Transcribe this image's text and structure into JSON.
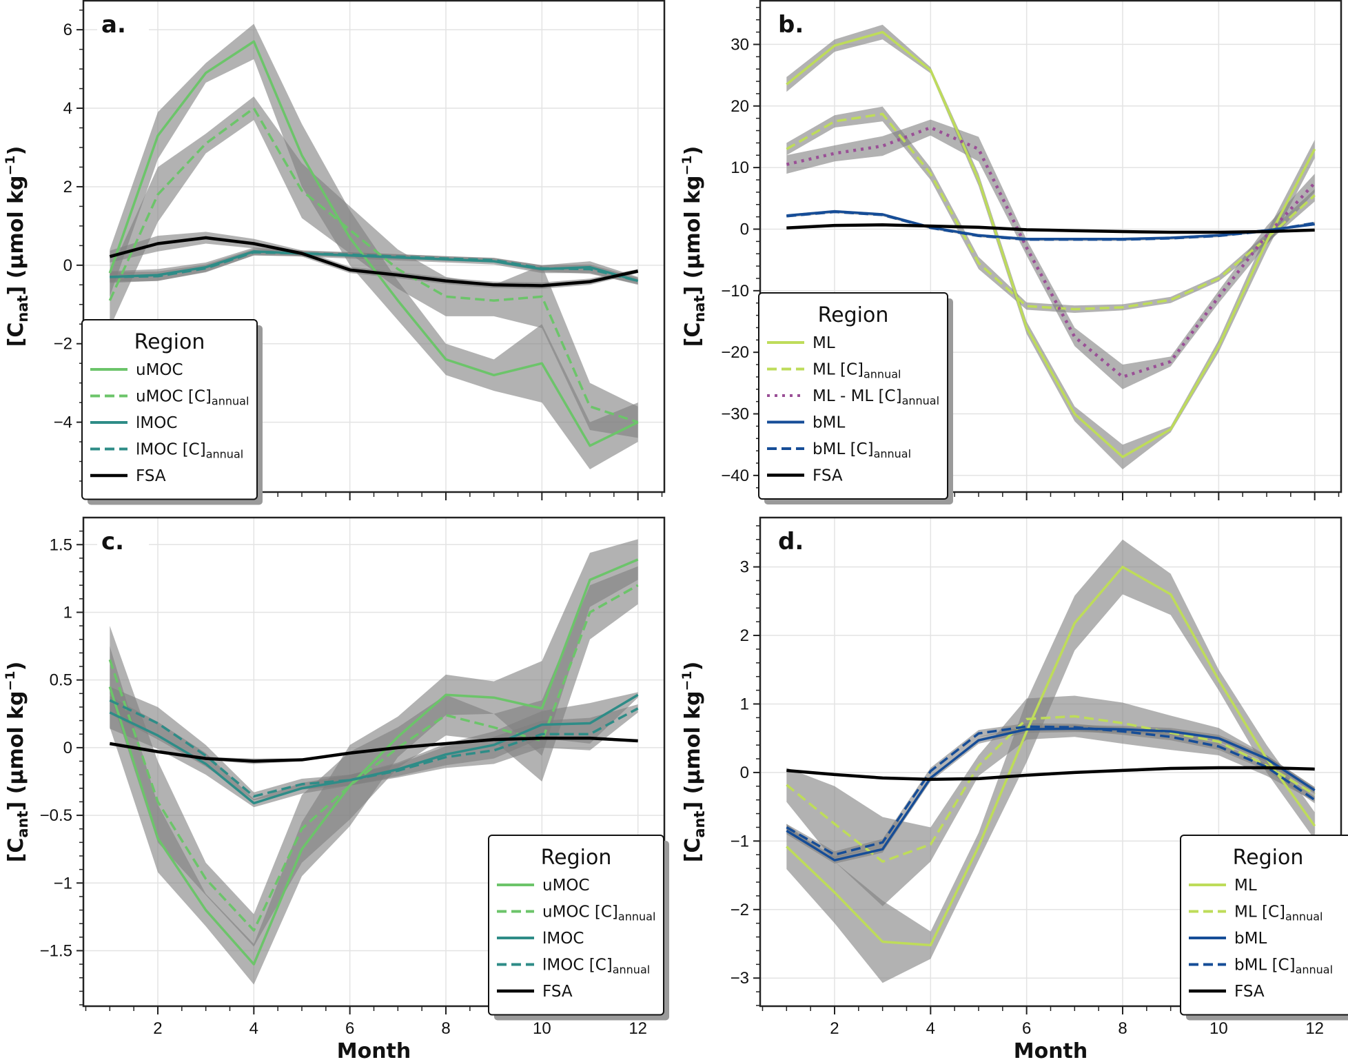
{
  "figure": {
    "xlabel": "Month",
    "legend_title": "Region"
  },
  "chart_data": [
    {
      "panel": "a.",
      "type": "line",
      "ylabel_main": "[C",
      "ylabel_sub": "nat",
      "ylabel_rest": "] (µmol kg",
      "ylabel_sup": "−1",
      "ylabel_end": ")",
      "xlim": [
        0.45,
        12.55
      ],
      "ylim": [
        -5.78,
        6.74
      ],
      "xticks": [
        2,
        4,
        6,
        8,
        10,
        12
      ],
      "show_xtick_labels": false,
      "yticks": [
        -4,
        -2,
        0,
        2,
        4,
        6
      ],
      "ytick_labels": [
        "−4",
        "−2",
        "0",
        "2",
        "4",
        "6"
      ],
      "yminor_step": 0.5,
      "grid": true,
      "legend_position": "lower-left",
      "x": [
        1,
        2,
        3,
        4,
        5,
        6,
        7,
        8,
        9,
        10,
        11,
        12
      ],
      "series": [
        {
          "name": "uMOC",
          "sub": "",
          "color": "#6cc46a",
          "dash": "solid",
          "values": [
            -0.2,
            3.3,
            4.9,
            5.7,
            2.8,
            0.7,
            -0.9,
            -2.4,
            -2.8,
            -2.5,
            -4.6,
            -4.0
          ],
          "band": [
            0.6,
            0.6,
            0.25,
            0.45,
            0.8,
            0.7,
            0.5,
            0.4,
            0.4,
            1.0,
            0.6,
            0.5
          ]
        },
        {
          "name": "uMOC [C]",
          "sub": "annual",
          "color": "#6cc46a",
          "dash": "dashed",
          "values": [
            -0.9,
            1.8,
            3.1,
            4.0,
            1.9,
            0.9,
            -0.1,
            -0.8,
            -0.9,
            -0.8,
            -3.6,
            -4.0
          ],
          "band": [
            0.7,
            0.7,
            0.25,
            0.3,
            0.7,
            0.6,
            0.5,
            0.5,
            0.4,
            0.8,
            0.6,
            0.4
          ]
        },
        {
          "name": "lMOC",
          "sub": "",
          "color": "#2e8c87",
          "dash": "solid",
          "values": [
            -0.3,
            -0.25,
            -0.05,
            0.35,
            0.3,
            0.25,
            0.2,
            0.15,
            0.1,
            -0.1,
            -0.05,
            -0.4
          ],
          "band": [
            0.15,
            0.15,
            0.12,
            0.1,
            0.08,
            0.08,
            0.08,
            0.08,
            0.08,
            0.1,
            0.15,
            0.1
          ]
        },
        {
          "name": "lMOC [C]",
          "sub": "annual",
          "color": "#2e8c87",
          "dash": "dashed",
          "values": [
            -0.3,
            -0.28,
            -0.08,
            0.33,
            0.3,
            0.27,
            0.22,
            0.17,
            0.13,
            -0.08,
            -0.1,
            -0.4
          ],
          "band": [
            0.12,
            0.12,
            0.1,
            0.08,
            0.06,
            0.06,
            0.06,
            0.06,
            0.06,
            0.08,
            0.12,
            0.08
          ]
        },
        {
          "name": "FSA",
          "sub": "",
          "color": "#000000",
          "dash": "solid",
          "values": [
            0.22,
            0.55,
            0.7,
            0.55,
            0.3,
            -0.12,
            -0.25,
            -0.4,
            -0.5,
            -0.52,
            -0.42,
            -0.15
          ],
          "band": [
            0.15,
            0.2,
            0.15,
            0.12,
            0.08,
            0.08,
            0.08,
            0.08,
            0.08,
            0.08,
            0.08,
            0.05
          ]
        }
      ]
    },
    {
      "panel": "b.",
      "type": "line",
      "ylabel_main": "[C",
      "ylabel_sub": "nat",
      "ylabel_rest": "] (µmol kg",
      "ylabel_sup": "−1",
      "ylabel_end": ")",
      "xlim": [
        0.45,
        12.55
      ],
      "ylim": [
        -42.7,
        37.1
      ],
      "xticks": [
        2,
        4,
        6,
        8,
        10,
        12
      ],
      "show_xtick_labels": false,
      "yticks": [
        -40,
        -30,
        -20,
        -10,
        0,
        10,
        20,
        30
      ],
      "ytick_labels": [
        "−40",
        "−30",
        "−20",
        "−10",
        "0",
        "10",
        "20",
        "30"
      ],
      "yminor_step": 2,
      "grid": true,
      "legend_position": "lower-left",
      "x": [
        1,
        2,
        3,
        4,
        5,
        6,
        7,
        8,
        9,
        10,
        11,
        12
      ],
      "series": [
        {
          "name": "ML",
          "sub": "",
          "color": "#bedc5a",
          "dash": "solid",
          "values": [
            23.5,
            29.8,
            32.0,
            25.8,
            8.0,
            -16.0,
            -30.0,
            -37.0,
            -32.5,
            -19.0,
            -2.0,
            13.0
          ],
          "band": [
            1.2,
            1.0,
            1.2,
            0.5,
            1.0,
            1.0,
            1.2,
            2.0,
            0.5,
            1.0,
            1.5,
            1.5
          ]
        },
        {
          "name": "ML [C]",
          "sub": "annual",
          "color": "#bedc5a",
          "dash": "dashed",
          "values": [
            13.0,
            17.5,
            18.7,
            9.0,
            -5.5,
            -12.5,
            -13.0,
            -12.7,
            -11.5,
            -8.0,
            -1.5,
            5.5
          ],
          "band": [
            1.0,
            1.0,
            1.2,
            1.0,
            1.0,
            0.6,
            0.6,
            0.5,
            0.5,
            0.5,
            0.8,
            1.0
          ]
        },
        {
          "name": "ML - ML [C]",
          "sub": "annual",
          "color": "#9a4f96",
          "dash": "dotted",
          "values": [
            10.5,
            12.3,
            13.5,
            16.5,
            13.0,
            -3.0,
            -17.5,
            -24.0,
            -21.5,
            -11.0,
            -1.0,
            7.5
          ],
          "band": [
            1.5,
            1.3,
            1.6,
            1.3,
            2.0,
            1.3,
            1.5,
            2.0,
            0.8,
            1.0,
            1.5,
            1.5
          ]
        },
        {
          "name": "bML",
          "sub": "",
          "color": "#164d97",
          "dash": "solid",
          "values": [
            2.2,
            2.9,
            2.4,
            0.3,
            -1.0,
            -1.6,
            -1.6,
            -1.6,
            -1.4,
            -1.0,
            -0.2,
            0.8
          ],
          "band": [
            0.2,
            0.2,
            0.2,
            0.2,
            0.2,
            0.2,
            0.2,
            0.2,
            0.2,
            0.2,
            0.2,
            0.2
          ]
        },
        {
          "name": "bML [C]",
          "sub": "annual",
          "color": "#164d97",
          "dash": "dashed",
          "values": [
            2.1,
            2.8,
            2.3,
            0.2,
            -1.1,
            -1.7,
            -1.7,
            -1.7,
            -1.5,
            -1.1,
            -0.3,
            1.0
          ],
          "band": [
            0.2,
            0.2,
            0.2,
            0.2,
            0.2,
            0.2,
            0.2,
            0.2,
            0.2,
            0.2,
            0.2,
            0.2
          ]
        },
        {
          "name": "FSA",
          "sub": "",
          "color": "#000000",
          "dash": "solid",
          "values": [
            0.2,
            0.6,
            0.7,
            0.5,
            0.3,
            -0.1,
            -0.25,
            -0.4,
            -0.5,
            -0.5,
            -0.4,
            -0.15
          ],
          "band": [
            0.1,
            0.1,
            0.1,
            0.1,
            0.1,
            0.1,
            0.1,
            0.1,
            0.1,
            0.1,
            0.1,
            0.1
          ]
        }
      ]
    },
    {
      "panel": "c.",
      "type": "line",
      "ylabel_main": "[C",
      "ylabel_sub": "ant",
      "ylabel_rest": "] (µmol kg",
      "ylabel_sup": "−1",
      "ylabel_end": ")",
      "xlim": [
        0.45,
        12.55
      ],
      "ylim": [
        -1.91,
        1.7
      ],
      "xticks": [
        2,
        4,
        6,
        8,
        10,
        12
      ],
      "xtick_labels": [
        "2",
        "4",
        "6",
        "8",
        "10",
        "12"
      ],
      "show_xtick_labels": true,
      "yticks": [
        -1.5,
        -1,
        -0.5,
        0,
        0.5,
        1,
        1.5
      ],
      "ytick_labels": [
        "−1.5",
        "−1",
        "−0.5",
        "0",
        "0.5",
        "1",
        "1.5"
      ],
      "yminor_step": 0.1,
      "grid": true,
      "legend_position": "lower-right",
      "x": [
        1,
        2,
        3,
        4,
        5,
        6,
        7,
        8,
        9,
        10,
        11,
        12
      ],
      "series": [
        {
          "name": "uMOC",
          "sub": "",
          "color": "#6cc46a",
          "dash": "solid",
          "values": [
            0.45,
            -0.67,
            -1.2,
            -1.6,
            -0.75,
            -0.28,
            0.08,
            0.39,
            0.37,
            0.29,
            1.24,
            1.39
          ],
          "band": [
            0.3,
            0.25,
            0.12,
            0.15,
            0.2,
            0.3,
            0.15,
            0.15,
            0.12,
            0.35,
            0.2,
            0.15
          ]
        },
        {
          "name": "uMOC [C]",
          "sub": "annual",
          "color": "#6cc46a",
          "dash": "dashed",
          "values": [
            0.65,
            -0.4,
            -0.97,
            -1.35,
            -0.6,
            -0.28,
            0.0,
            0.24,
            0.15,
            0.05,
            1.0,
            1.2
          ],
          "band": [
            0.25,
            0.3,
            0.12,
            0.12,
            0.25,
            0.25,
            0.15,
            0.15,
            0.1,
            0.3,
            0.2,
            0.14
          ]
        },
        {
          "name": "lMOC",
          "sub": "",
          "color": "#2e8c87",
          "dash": "solid",
          "values": [
            0.26,
            0.09,
            -0.12,
            -0.41,
            -0.3,
            -0.24,
            -0.16,
            -0.05,
            0.02,
            0.17,
            0.18,
            0.39
          ],
          "band": [
            0.12,
            0.1,
            0.08,
            0.03,
            0.04,
            0.04,
            0.05,
            0.08,
            0.1,
            0.1,
            0.15,
            0.02
          ]
        },
        {
          "name": "lMOC [C]",
          "sub": "annual",
          "color": "#2e8c87",
          "dash": "dashed",
          "values": [
            0.35,
            0.18,
            -0.06,
            -0.36,
            -0.27,
            -0.24,
            -0.17,
            -0.07,
            -0.02,
            0.1,
            0.1,
            0.29
          ],
          "band": [
            0.1,
            0.12,
            0.08,
            0.03,
            0.04,
            0.04,
            0.05,
            0.08,
            0.1,
            0.1,
            0.12,
            0.03
          ]
        },
        {
          "name": "FSA",
          "sub": "",
          "color": "#000000",
          "dash": "solid",
          "values": [
            0.03,
            -0.03,
            -0.08,
            -0.1,
            -0.09,
            -0.04,
            0.0,
            0.03,
            0.06,
            0.07,
            0.07,
            0.05
          ],
          "band": [
            0.01,
            0.01,
            0.01,
            0.02,
            0.01,
            0.01,
            0.01,
            0.01,
            0.01,
            0.01,
            0.01,
            0.01
          ]
        }
      ]
    },
    {
      "panel": "d.",
      "type": "line",
      "ylabel_main": "[C",
      "ylabel_sub": "ant",
      "ylabel_rest": "] (µmol kg",
      "ylabel_sup": "−1",
      "ylabel_end": ")",
      "xlim": [
        0.45,
        12.55
      ],
      "ylim": [
        -3.41,
        3.72
      ],
      "xticks": [
        2,
        4,
        6,
        8,
        10,
        12
      ],
      "xtick_labels": [
        "2",
        "4",
        "6",
        "8",
        "10",
        "12"
      ],
      "show_xtick_labels": true,
      "yticks": [
        -3,
        -2,
        -1,
        0,
        1,
        2,
        3
      ],
      "ytick_labels": [
        "−3",
        "−2",
        "−1",
        "0",
        "1",
        "2",
        "3"
      ],
      "yminor_step": 0.2,
      "grid": true,
      "legend_position": "lower-right",
      "x": [
        1,
        2,
        3,
        4,
        5,
        6,
        7,
        8,
        9,
        10,
        11,
        12
      ],
      "series": [
        {
          "name": "ML",
          "sub": "",
          "color": "#bedc5a",
          "dash": "solid",
          "values": [
            -1.08,
            -1.75,
            -2.47,
            -2.52,
            -1.08,
            0.6,
            2.18,
            3.0,
            2.6,
            1.35,
            0.2,
            -0.78
          ],
          "band": [
            0.33,
            0.45,
            0.6,
            0.2,
            0.2,
            0.45,
            0.4,
            0.4,
            0.3,
            0.15,
            0.2,
            0.2
          ]
        },
        {
          "name": "ML [C]",
          "sub": "annual",
          "color": "#bedc5a",
          "dash": "dashed",
          "values": [
            -0.18,
            -0.75,
            -1.3,
            -1.05,
            0.1,
            0.78,
            0.82,
            0.72,
            0.58,
            0.45,
            0.1,
            -0.32
          ],
          "band": [
            0.25,
            0.55,
            0.65,
            0.25,
            0.15,
            0.3,
            0.3,
            0.3,
            0.25,
            0.2,
            0.15,
            0.1
          ]
        },
        {
          "name": "bML",
          "sub": "",
          "color": "#164d97",
          "dash": "solid",
          "values": [
            -0.85,
            -1.28,
            -1.12,
            -0.08,
            0.47,
            0.63,
            0.64,
            0.63,
            0.6,
            0.5,
            0.2,
            -0.26
          ],
          "band": [
            0.05,
            0.05,
            0.05,
            0.05,
            0.05,
            0.05,
            0.05,
            0.05,
            0.05,
            0.05,
            0.05,
            0.05
          ]
        },
        {
          "name": "bML [C]",
          "sub": "annual",
          "color": "#164d97",
          "dash": "dashed",
          "values": [
            -0.8,
            -1.2,
            -1.02,
            0.02,
            0.57,
            0.67,
            0.66,
            0.6,
            0.52,
            0.38,
            0.08,
            -0.4
          ],
          "band": [
            0.05,
            0.05,
            0.05,
            0.05,
            0.05,
            0.05,
            0.05,
            0.05,
            0.05,
            0.05,
            0.05,
            0.05
          ]
        },
        {
          "name": "FSA",
          "sub": "",
          "color": "#000000",
          "dash": "solid",
          "values": [
            0.03,
            -0.03,
            -0.08,
            -0.1,
            -0.09,
            -0.04,
            0.0,
            0.03,
            0.06,
            0.07,
            0.07,
            0.05
          ],
          "band": [
            0.01,
            0.01,
            0.01,
            0.01,
            0.01,
            0.01,
            0.01,
            0.01,
            0.01,
            0.01,
            0.01,
            0.01
          ]
        }
      ]
    }
  ]
}
